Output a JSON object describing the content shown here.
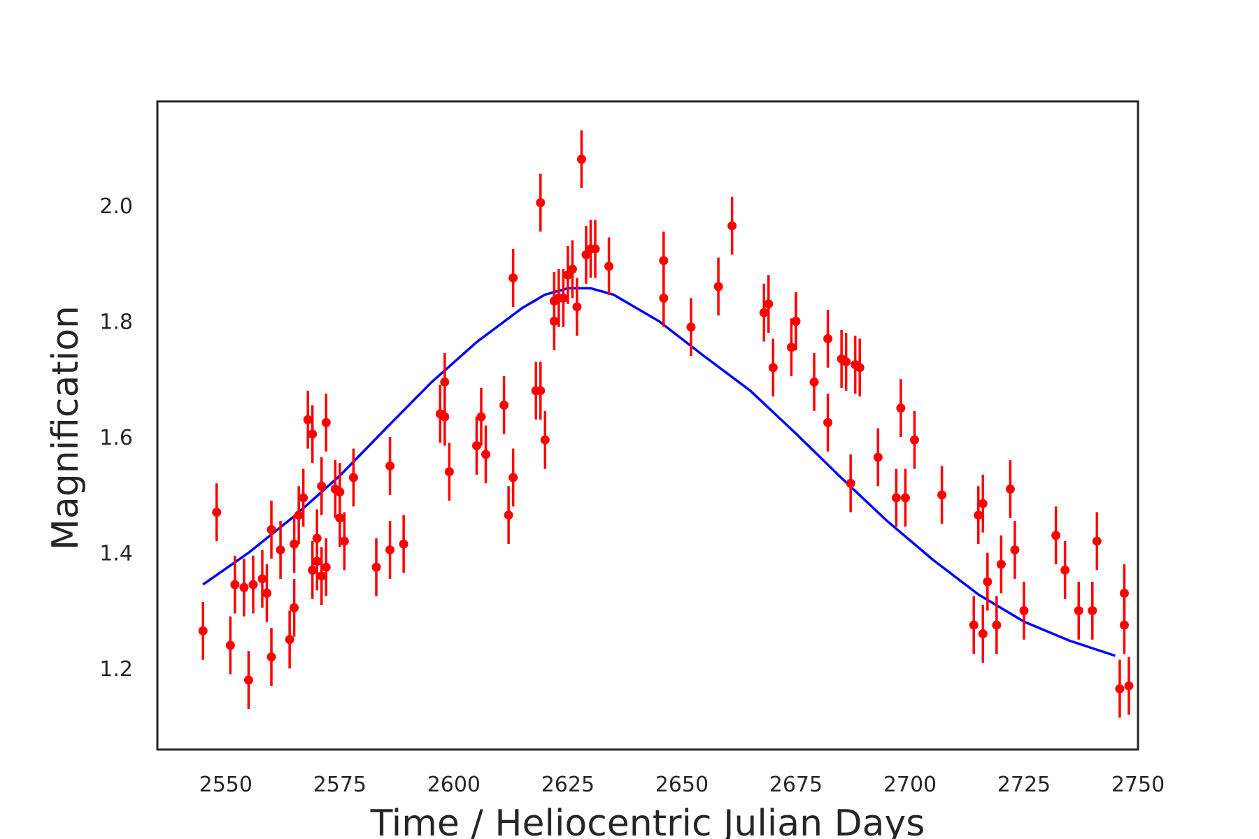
{
  "chart_data": {
    "type": "scatter",
    "title": "",
    "xlabel": "Time / Heliocentric Julian Days",
    "ylabel": "Magnification",
    "xlim": [
      2535,
      2750
    ],
    "ylim": [
      1.06,
      2.18
    ],
    "xticks": [
      2550,
      2575,
      2600,
      2625,
      2650,
      2675,
      2700,
      2725,
      2750
    ],
    "yticks": [
      1.2,
      1.4,
      1.6,
      1.8,
      2.0
    ],
    "xtick_labels": [
      "2550",
      "2575",
      "2600",
      "2625",
      "2650",
      "2675",
      "2700",
      "2725",
      "2750"
    ],
    "ytick_labels": [
      "1.2",
      "1.4",
      "1.6",
      "1.8",
      "2.0"
    ],
    "grid": false,
    "colors": {
      "points": "#ff0000",
      "fit": "#0000ff",
      "frame": "#262626"
    },
    "fit_curve": {
      "x": [
        2545,
        2555,
        2565,
        2575,
        2585,
        2595,
        2605,
        2615,
        2620,
        2625,
        2630,
        2635,
        2645,
        2655,
        2665,
        2675,
        2685,
        2695,
        2705,
        2715,
        2725,
        2735,
        2745
      ],
      "y": [
        1.345,
        1.4,
        1.463,
        1.533,
        1.614,
        1.694,
        1.764,
        1.823,
        1.846,
        1.857,
        1.857,
        1.846,
        1.8,
        1.739,
        1.68,
        1.606,
        1.529,
        1.455,
        1.388,
        1.328,
        1.281,
        1.248,
        1.222
      ]
    },
    "series": [
      {
        "x": [
          2545,
          2548,
          2551,
          2552,
          2554,
          2555,
          2556,
          2558,
          2559,
          2560,
          2560,
          2562,
          2564,
          2565,
          2565,
          2566,
          2567,
          2568,
          2569,
          2569,
          2570,
          2570,
          2571,
          2571,
          2572,
          2572,
          2574,
          2575,
          2575,
          2576,
          2578,
          2583,
          2586,
          2586,
          2589,
          2597,
          2598,
          2598,
          2599,
          2605,
          2606,
          2607,
          2611,
          2612,
          2613,
          2613,
          2618,
          2619,
          2619,
          2620,
          2622,
          2622,
          2623,
          2624,
          2625,
          2626,
          2627,
          2628,
          2629,
          2630,
          2631,
          2634,
          2646,
          2646,
          2652,
          2658,
          2661,
          2668,
          2669,
          2670,
          2674,
          2675,
          2675,
          2679,
          2682,
          2682,
          2685,
          2686,
          2687,
          2688,
          2689,
          2693,
          2697,
          2698,
          2699,
          2701,
          2707,
          2714,
          2715,
          2716,
          2716,
          2717,
          2719,
          2720,
          2722,
          2723,
          2725,
          2732,
          2734,
          2737,
          2740,
          2741,
          2746,
          2747,
          2747,
          2748
        ],
        "y": [
          1.265,
          1.47,
          1.24,
          1.345,
          1.34,
          1.18,
          1.345,
          1.355,
          1.33,
          1.22,
          1.44,
          1.405,
          1.25,
          1.305,
          1.415,
          1.465,
          1.495,
          1.63,
          1.37,
          1.605,
          1.425,
          1.385,
          1.36,
          1.515,
          1.625,
          1.375,
          1.51,
          1.505,
          1.46,
          1.42,
          1.53,
          1.375,
          1.405,
          1.55,
          1.415,
          1.64,
          1.695,
          1.635,
          1.54,
          1.585,
          1.635,
          1.57,
          1.655,
          1.465,
          1.53,
          1.875,
          1.68,
          2.005,
          1.68,
          1.595,
          1.835,
          1.8,
          1.84,
          1.84,
          1.88,
          1.89,
          1.825,
          2.08,
          1.915,
          1.925,
          1.925,
          1.895,
          1.84,
          1.905,
          1.79,
          1.86,
          1.965,
          1.815,
          1.83,
          1.72,
          1.755,
          1.8,
          1.8,
          1.695,
          1.77,
          1.625,
          1.735,
          1.73,
          1.52,
          1.725,
          1.72,
          1.565,
          1.495,
          1.65,
          1.495,
          1.595,
          1.5,
          1.275,
          1.465,
          1.485,
          1.26,
          1.35,
          1.275,
          1.38,
          1.51,
          1.405,
          1.3,
          1.43,
          1.37,
          1.3,
          1.3,
          1.42,
          1.165,
          1.33,
          1.275,
          1.17
        ],
        "yerr": 0.05
      }
    ]
  }
}
